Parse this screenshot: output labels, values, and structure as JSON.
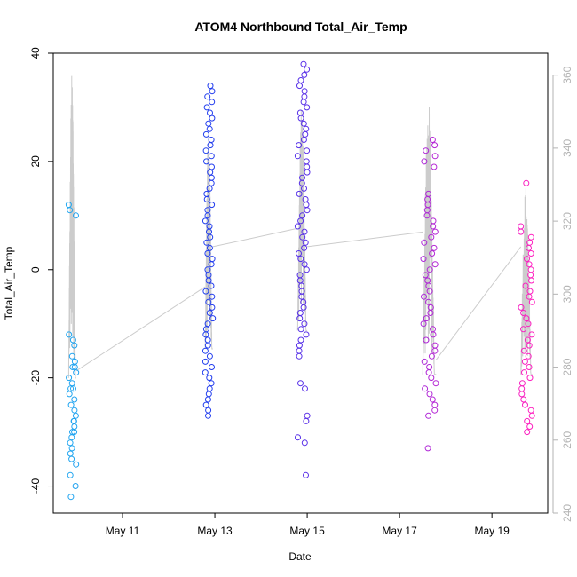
{
  "chart_data": {
    "type": "scatter",
    "title": "ATOM4 Northbound Total_Air_Temp",
    "xlabel": "Date",
    "ylabel": "Total_Air_Temp",
    "x_axis": {
      "kind": "date",
      "range": [
        "2016-05-09T12:00",
        "2016-05-20T05:00"
      ],
      "ticks": [
        {
          "value": "2016-05-11",
          "label": "May 11"
        },
        {
          "value": "2016-05-13",
          "label": "May 13"
        },
        {
          "value": "2016-05-15",
          "label": "May 15"
        },
        {
          "value": "2016-05-17",
          "label": "May 17"
        },
        {
          "value": "2016-05-19",
          "label": "May 19"
        }
      ]
    },
    "y_axis_left": {
      "range": [
        -45,
        40
      ],
      "ticks": [
        {
          "value": 40,
          "label": "40"
        },
        {
          "value": 20,
          "label": "20"
        },
        {
          "value": 0,
          "label": "0"
        },
        {
          "value": -20,
          "label": "-20"
        },
        {
          "value": -40,
          "label": "-40"
        }
      ]
    },
    "y_axis_right": {
      "range": [
        240,
        366
      ],
      "color": "#b3b3b3",
      "ticks": [
        {
          "value": 240,
          "label": "240"
        },
        {
          "value": 260,
          "label": "260"
        },
        {
          "value": 280,
          "label": "280"
        },
        {
          "value": 300,
          "label": "300"
        },
        {
          "value": 320,
          "label": "320"
        },
        {
          "value": 340,
          "label": "340"
        },
        {
          "value": 360,
          "label": "360"
        }
      ]
    },
    "grid": false,
    "legend": "none",
    "point_color_gradient": [
      "#21a7f0",
      "#2233ee",
      "#8a2be2",
      "#ff1fbf"
    ],
    "line_series_color": "#cccccc",
    "series": [
      {
        "kind": "points",
        "x_range": [
          "2016-05-09T20:00",
          "2016-05-10T00:00"
        ],
        "min": -42,
        "max": 12,
        "values": [
          -42,
          -40,
          -38,
          -36,
          -35,
          -34,
          -33,
          -32,
          -31,
          -30,
          -30,
          -29,
          -28,
          -28,
          -27,
          -26,
          -25,
          -24,
          -23,
          -22,
          -22,
          -21,
          -20,
          -19,
          -18,
          -18,
          -17,
          -16,
          -14,
          -13,
          -12,
          10,
          11,
          12
        ]
      },
      {
        "kind": "points",
        "x_range": [
          "2016-05-12T19:00",
          "2016-05-12T23:00"
        ],
        "min": -27,
        "max": 34,
        "values": [
          -27,
          -26,
          -25,
          -24,
          -23,
          -22,
          -21,
          -20,
          -19,
          -18,
          -17,
          -16,
          -15,
          -14,
          -13,
          -12,
          -11,
          -10,
          -9,
          -8,
          -7,
          -6,
          -5,
          -4,
          -3,
          -2,
          -1,
          0,
          1,
          2,
          3,
          4,
          5,
          6,
          7,
          8,
          9,
          10,
          11,
          12,
          13,
          14,
          15,
          16,
          17,
          18,
          19,
          20,
          21,
          22,
          23,
          24,
          25,
          26,
          27,
          28,
          29,
          30,
          31,
          32,
          33,
          34
        ]
      },
      {
        "kind": "points",
        "x_range": [
          "2016-05-14T19:00",
          "2016-05-15T00:00"
        ],
        "min": -38,
        "max": 38,
        "values": [
          -38,
          -32,
          -31,
          -28,
          -27,
          -22,
          -21,
          -16,
          -15,
          -14,
          -13,
          -12,
          -11,
          -10,
          -9,
          -8,
          -7,
          -6,
          -5,
          -4,
          -3,
          -2,
          -1,
          0,
          1,
          2,
          3,
          4,
          5,
          6,
          7,
          8,
          9,
          10,
          11,
          12,
          13,
          14,
          15,
          16,
          17,
          18,
          19,
          20,
          21,
          22,
          23,
          24,
          25,
          26,
          27,
          28,
          29,
          30,
          31,
          32,
          33,
          34,
          35,
          36,
          37,
          38
        ]
      },
      {
        "kind": "points",
        "x_range": [
          "2016-05-17T12:00",
          "2016-05-17T19:00"
        ],
        "min": -33,
        "max": 24,
        "values": [
          -33,
          -27,
          -26,
          -25,
          -24,
          -23,
          -22,
          -21,
          -20,
          -19,
          -18,
          -17,
          -16,
          -15,
          -14,
          -13,
          -12,
          -11,
          -10,
          -9,
          -8,
          -7,
          -6,
          -5,
          -4,
          -3,
          -2,
          -1,
          0,
          1,
          2,
          3,
          4,
          5,
          6,
          7,
          8,
          9,
          10,
          11,
          12,
          13,
          14,
          19,
          20,
          21,
          22,
          23,
          24
        ]
      },
      {
        "kind": "points",
        "x_range": [
          "2016-05-19T15:00",
          "2016-05-19T21:00"
        ],
        "min": -30,
        "max": 16,
        "values": [
          -30,
          -29,
          -28,
          -27,
          -26,
          -25,
          -24,
          -23,
          -22,
          -21,
          -20,
          -19,
          -18,
          -17,
          -16,
          -15,
          -14,
          -13,
          -12,
          -11,
          -10,
          -9,
          -8,
          -7,
          -6,
          -5,
          -4,
          -3,
          -2,
          -1,
          0,
          1,
          2,
          3,
          4,
          5,
          6,
          7,
          8,
          16
        ]
      }
    ],
    "line_series": {
      "axis": "right",
      "bursts": [
        {
          "x_range": [
            "2016-05-09T20:00",
            "2016-05-10T00:00"
          ],
          "min": 277,
          "max": 361
        },
        {
          "x_range": [
            "2016-05-12T19:00",
            "2016-05-12T23:00"
          ],
          "min": 285,
          "max": 345
        },
        {
          "x_range": [
            "2016-05-14T19:00",
            "2016-05-15T00:00"
          ],
          "min": 290,
          "max": 352
        },
        {
          "x_range": [
            "2016-05-17T12:00",
            "2016-05-17T19:00"
          ],
          "min": 278,
          "max": 353
        },
        {
          "x_range": [
            "2016-05-19T15:00",
            "2016-05-19T21:00"
          ],
          "min": 278,
          "max": 330
        }
      ],
      "connectors": [
        {
          "from": [
            "2016-05-10T00:00",
            279
          ],
          "to": [
            "2016-05-12T19:00",
            302
          ]
        },
        {
          "from": [
            "2016-05-12T23:00",
            313
          ],
          "to": [
            "2016-05-14T19:00",
            318
          ]
        },
        {
          "from": [
            "2016-05-15T00:00",
            313
          ],
          "to": [
            "2016-05-17T12:00",
            317
          ]
        },
        {
          "from": [
            "2016-05-17T19:00",
            282
          ],
          "to": [
            "2016-05-19T15:00",
            313
          ]
        }
      ]
    }
  }
}
